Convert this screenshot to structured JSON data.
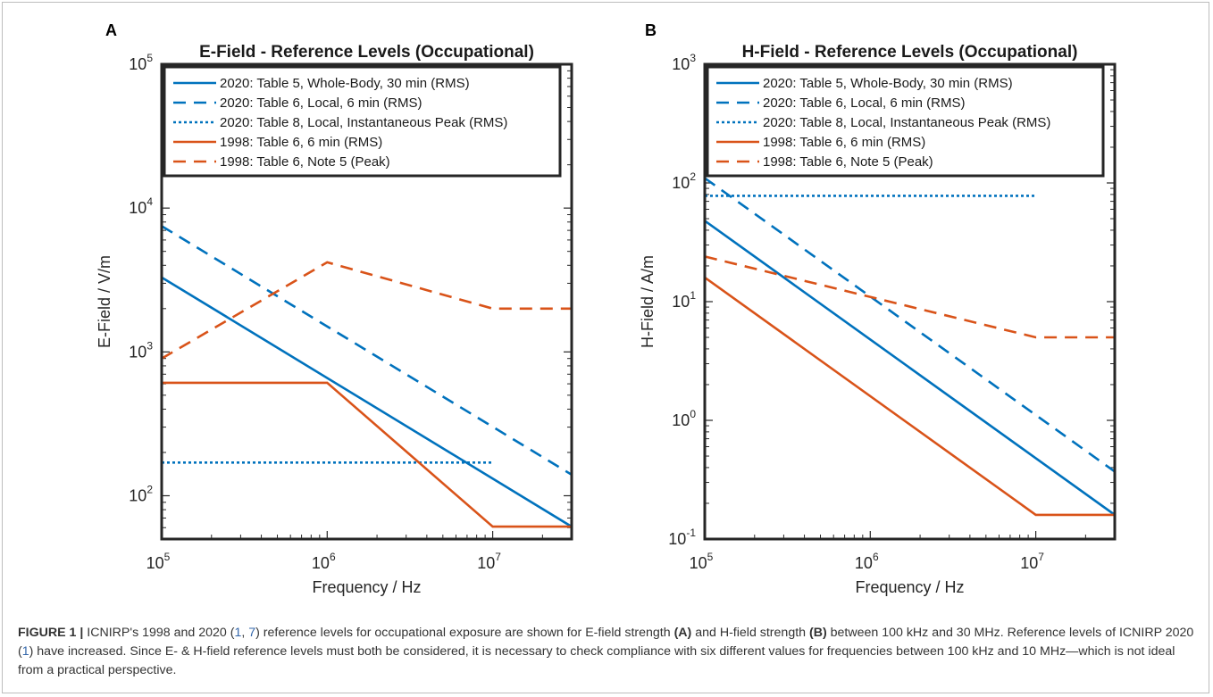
{
  "colors": {
    "blue": "#0072bd",
    "orange": "#d95319",
    "axes": "#262626"
  },
  "chart_data": [
    {
      "type": "line",
      "panel": "A",
      "title": "E-Field - Reference Levels (Occupational)",
      "xlabel": "Frequency / Hz",
      "ylabel": "E-Field / V/m",
      "xscale": "log",
      "yscale": "log",
      "xlim": [
        100000,
        30000000
      ],
      "ylim": [
        50,
        100000
      ],
      "xticks": [
        100000,
        1000000,
        10000000
      ],
      "xtick_labels": [
        {
          "base": "10",
          "exp": "5"
        },
        {
          "base": "10",
          "exp": "6"
        },
        {
          "base": "10",
          "exp": "7"
        }
      ],
      "yticks": [
        100,
        1000,
        10000,
        100000
      ],
      "ytick_labels": [
        {
          "base": "10",
          "exp": "2"
        },
        {
          "base": "10",
          "exp": "3"
        },
        {
          "base": "10",
          "exp": "4"
        },
        {
          "base": "10",
          "exp": "5"
        }
      ],
      "grid": false,
      "legend_position": "top-left",
      "series": [
        {
          "name": "2020: Table 5, Whole-Body, 30 min (RMS)",
          "color": "#0072bd",
          "dash": "solid",
          "x": [
            100000,
            30000000
          ],
          "y": [
            3300,
            61
          ]
        },
        {
          "name": "2020: Table 6, Local, 6 min (RMS)",
          "color": "#0072bd",
          "dash": "dashed",
          "x": [
            100000,
            30000000
          ],
          "y": [
            7500,
            140
          ]
        },
        {
          "name": "2020: Table 8, Local, Instantaneous Peak (RMS)",
          "color": "#0072bd",
          "dash": "dotted",
          "x": [
            100000,
            10000000
          ],
          "y": [
            170,
            170
          ]
        },
        {
          "name": "1998: Table 6, 6 min (RMS)",
          "color": "#d95319",
          "dash": "solid",
          "x": [
            100000,
            1000000,
            10000000,
            30000000
          ],
          "y": [
            610,
            610,
            61,
            61
          ]
        },
        {
          "name": "1998: Table 6, Note 5 (Peak)",
          "color": "#d95319",
          "dash": "dashed",
          "x": [
            100000,
            1000000,
            10000000,
            30000000
          ],
          "y": [
            900,
            4200,
            2000,
            2000
          ]
        }
      ]
    },
    {
      "type": "line",
      "panel": "B",
      "title": "H-Field - Reference Levels (Occupational)",
      "xlabel": "Frequency / Hz",
      "ylabel": "H-Field / A/m",
      "xscale": "log",
      "yscale": "log",
      "xlim": [
        100000,
        30000000
      ],
      "ylim": [
        0.1,
        1000
      ],
      "xticks": [
        100000,
        1000000,
        10000000
      ],
      "xtick_labels": [
        {
          "base": "10",
          "exp": "5"
        },
        {
          "base": "10",
          "exp": "6"
        },
        {
          "base": "10",
          "exp": "7"
        }
      ],
      "yticks": [
        0.1,
        1,
        10,
        100,
        1000
      ],
      "ytick_labels": [
        {
          "base": "10",
          "exp": "-1"
        },
        {
          "base": "10",
          "exp": "0"
        },
        {
          "base": "10",
          "exp": "1"
        },
        {
          "base": "10",
          "exp": "2"
        },
        {
          "base": "10",
          "exp": "3"
        }
      ],
      "grid": false,
      "legend_position": "top-left",
      "series": [
        {
          "name": "2020: Table 5, Whole-Body, 30 min (RMS)",
          "color": "#0072bd",
          "dash": "solid",
          "x": [
            100000,
            30000000
          ],
          "y": [
            48,
            0.16
          ]
        },
        {
          "name": "2020: Table 6, Local, 6 min (RMS)",
          "color": "#0072bd",
          "dash": "dashed",
          "x": [
            100000,
            30000000
          ],
          "y": [
            110,
            0.37
          ]
        },
        {
          "name": "2020: Table 8, Local, Instantaneous Peak (RMS)",
          "color": "#0072bd",
          "dash": "dotted",
          "x": [
            100000,
            10000000
          ],
          "y": [
            78,
            78
          ]
        },
        {
          "name": "1998: Table 6, 6 min (RMS)",
          "color": "#d95319",
          "dash": "solid",
          "x": [
            100000,
            10000000,
            30000000
          ],
          "y": [
            16,
            0.16,
            0.16
          ]
        },
        {
          "name": "1998: Table 6, Note 5 (Peak)",
          "color": "#d95319",
          "dash": "dashed",
          "x": [
            100000,
            10000000,
            30000000
          ],
          "y": [
            24,
            5,
            5
          ]
        }
      ]
    }
  ],
  "caption": {
    "label": "FIGURE 1 |",
    "parts": [
      {
        "t": " ICNIRP's 1998 and 2020 (",
        "s": "n"
      },
      {
        "t": "1",
        "s": "ref"
      },
      {
        "t": ", ",
        "s": "n"
      },
      {
        "t": "7",
        "s": "ref"
      },
      {
        "t": ") reference levels for occupational exposure are shown for E-field strength ",
        "s": "n"
      },
      {
        "t": "(A)",
        "s": "b"
      },
      {
        "t": " and H-field strength ",
        "s": "n"
      },
      {
        "t": "(B)",
        "s": "b"
      },
      {
        "t": " between 100 kHz and 30 MHz. Reference levels of ICNIRP 2020 (",
        "s": "n"
      },
      {
        "t": "1",
        "s": "ref"
      },
      {
        "t": ") have increased. Since E- & H-field reference levels must both be considered, it is necessary to check compliance with six different values for frequencies between 100 kHz and 10 MHz—which is not ideal from a practical perspective.",
        "s": "n"
      }
    ]
  }
}
